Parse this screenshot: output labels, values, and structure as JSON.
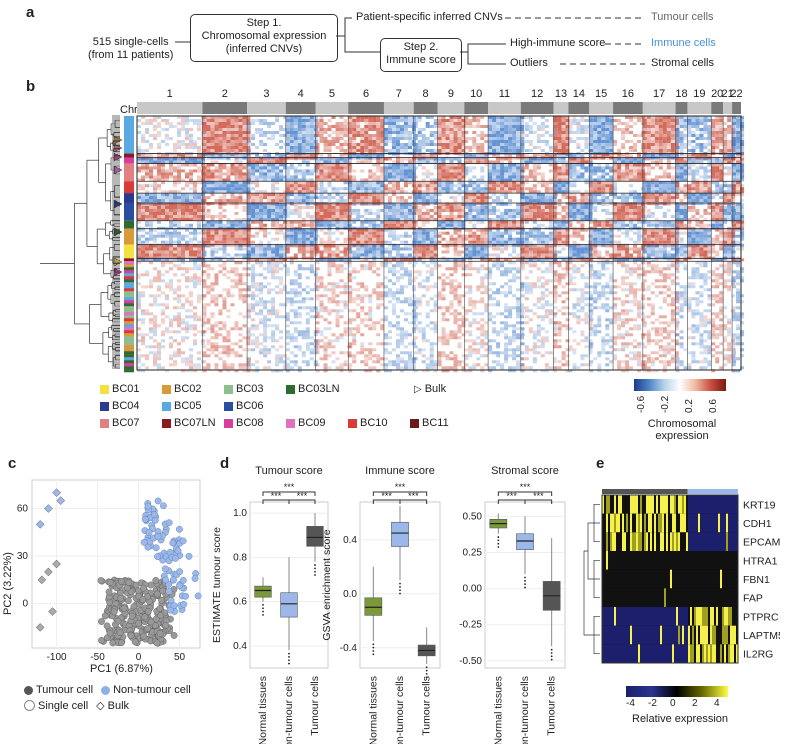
{
  "panel_a": {
    "label": "a",
    "input": [
      "515 single-cells",
      "(from 11 patients)"
    ],
    "step1": [
      "Step 1.",
      "Chromosomal expression",
      "(inferred CNVs)"
    ],
    "branch1": "Patient-specific inferred CNVs",
    "tumour": "Tumour cells",
    "step2": [
      "Step 2.",
      "Immune score"
    ],
    "high_immune": "High-immune score",
    "immune": "Immune cells",
    "outliers": "Outliers",
    "stromal": "Stromal cells",
    "colors": {
      "immune_text": "#4a90d9",
      "grey_text": "#666666"
    }
  },
  "panel_b": {
    "label": "b",
    "chr_label": "Chr",
    "chromosomes": [
      "1",
      "2",
      "3",
      "4",
      "5",
      "6",
      "7",
      "8",
      "9",
      "10",
      "11",
      "12",
      "13",
      "14",
      "15",
      "16",
      "17",
      "18",
      "19",
      "20",
      "21",
      "22"
    ],
    "patients": [
      {
        "name": "BC01",
        "color": "#f5e042"
      },
      {
        "name": "BC02",
        "color": "#d99a3a"
      },
      {
        "name": "BC03",
        "color": "#8fbf8f"
      },
      {
        "name": "BC03LN",
        "color": "#2e6b2e"
      },
      {
        "name": "BC04",
        "color": "#2a3a8f"
      },
      {
        "name": "BC05",
        "color": "#5aa9e0"
      },
      {
        "name": "BC06",
        "color": "#2b4fa0"
      },
      {
        "name": "BC07",
        "color": "#e08080"
      },
      {
        "name": "BC07LN",
        "color": "#8b1c1c"
      },
      {
        "name": "BC08",
        "color": "#d63fa0"
      },
      {
        "name": "BC09",
        "color": "#e070c0"
      },
      {
        "name": "BC10",
        "color": "#d93a3a"
      },
      {
        "name": "BC11",
        "color": "#6b1a1a"
      }
    ],
    "bulk_label": "Bulk",
    "colorbar_ticks": [
      "-0.6",
      "-0.2",
      "0.2",
      "0.6"
    ],
    "colorbar_title": [
      "Chromosomal",
      "expression"
    ]
  },
  "panel_c": {
    "label": "c",
    "xlabel": "PC1 (6.87%)",
    "ylabel": "PC2 (3.22%)",
    "xticks": [
      "-100",
      "-50",
      "0",
      "50"
    ],
    "yticks": [
      "0",
      "30",
      "60"
    ],
    "legend": {
      "tumour": "Tumour cell",
      "nontumour": "Non-tumour cell",
      "single": "Single cell",
      "bulk": "Bulk"
    }
  },
  "panel_d": {
    "label": "d",
    "plots": [
      {
        "title": "Tumour score",
        "ylabel": "ESTIMATE tumour score",
        "yticks": [
          "0.4",
          "0.6",
          "0.8",
          "1.0"
        ]
      },
      {
        "title": "Immune score",
        "ylabel": "GSVA enrichment score",
        "yticks": [
          "-0.4",
          "0.0",
          "0.4"
        ]
      },
      {
        "title": "Stromal score",
        "ylabel": "",
        "yticks": [
          "-0.50",
          "-0.25",
          "0.00",
          "0.25",
          "0.50"
        ]
      }
    ],
    "categories": [
      "Normal tissues",
      "Non-tumour cells",
      "Tumour cells"
    ],
    "sig": "***"
  },
  "panel_e": {
    "label": "e",
    "genes": [
      "KRT19",
      "CDH1",
      "EPCAM",
      "HTRA1",
      "FBN1",
      "FAP",
      "PTPRC",
      "LAPTM5",
      "IL2RG"
    ],
    "colorbar_ticks": [
      "-4",
      "-2",
      "0",
      "2",
      "4"
    ],
    "colorbar_title": "Relative expression"
  },
  "chart_data": [
    {
      "type": "heatmap",
      "title": "",
      "xlabel": "Chr",
      "categories": [
        "1",
        "2",
        "3",
        "4",
        "5",
        "6",
        "7",
        "8",
        "9",
        "10",
        "11",
        "12",
        "13",
        "14",
        "15",
        "16",
        "17",
        "18",
        "19",
        "20",
        "21",
        "22"
      ],
      "n_cells": 515,
      "colorbar_range": [
        -0.6,
        0.6
      ]
    },
    {
      "type": "scatter",
      "xlabel": "PC1 (6.87%)",
      "ylabel": "PC2 (3.22%)",
      "xlim": [
        -130,
        75
      ],
      "ylim": [
        -28,
        78
      ],
      "series": [
        {
          "name": "Tumour cell",
          "points": [
            [
              -40,
              10
            ],
            [
              -30,
              5
            ],
            [
              -20,
              0
            ],
            [
              -10,
              -5
            ],
            [
              0,
              -10
            ],
            [
              10,
              -8
            ],
            [
              20,
              -12
            ],
            [
              -25,
              -15
            ],
            [
              5,
              5
            ],
            [
              15,
              0
            ],
            [
              -5,
              15
            ],
            [
              -35,
              -5
            ],
            [
              25,
              -3
            ],
            [
              -15,
              -20
            ],
            [
              0,
              -22
            ]
          ]
        },
        {
          "name": "Non-tumour cell",
          "points": [
            [
              10,
              60
            ],
            [
              20,
              55
            ],
            [
              30,
              50
            ],
            [
              40,
              40
            ],
            [
              50,
              30
            ],
            [
              55,
              20
            ],
            [
              60,
              10
            ],
            [
              35,
              45
            ],
            [
              45,
              35
            ],
            [
              25,
              65
            ],
            [
              15,
              70
            ],
            [
              5,
              65
            ],
            [
              -5,
              55
            ],
            [
              0,
              60
            ],
            [
              50,
              15
            ],
            [
              60,
              20
            ],
            [
              65,
              25
            ]
          ]
        },
        {
          "name": "Bulk",
          "points": [
            [
              -120,
              50
            ],
            [
              -110,
              60
            ],
            [
              -100,
              70
            ],
            [
              -95,
              65
            ],
            [
              -118,
              15
            ],
            [
              -110,
              20
            ],
            [
              -100,
              25
            ],
            [
              -120,
              -15
            ],
            [
              -105,
              -5
            ]
          ]
        }
      ]
    },
    {
      "type": "bar",
      "title": "Tumour score",
      "categories": [
        "Normal tissues",
        "Non-tumour cells",
        "Tumour cells"
      ],
      "values": [
        0.65,
        0.59,
        0.89
      ],
      "ylabel": "ESTIMATE tumour score"
    },
    {
      "type": "bar",
      "title": "Immune score",
      "categories": [
        "Normal tissues",
        "Non-tumour cells",
        "Tumour cells"
      ],
      "values": [
        -0.1,
        0.45,
        -0.42
      ],
      "ylabel": "GSVA enrichment score"
    },
    {
      "type": "bar",
      "title": "Stromal score",
      "categories": [
        "Normal tissues",
        "Non-tumour cells",
        "Tumour cells"
      ],
      "values": [
        0.45,
        0.33,
        -0.05
      ]
    }
  ]
}
